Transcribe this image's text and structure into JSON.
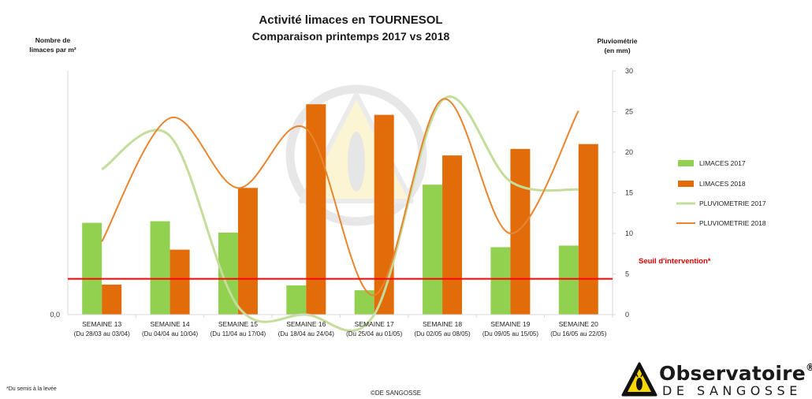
{
  "title": "Activité limaces en TOURNESOL",
  "subtitle": "Comparaison printemps 2017 vs 2018",
  "y_left_label_line1": "Nombre de",
  "y_left_label_line2": "limaces par m²",
  "y_right_label_line1": "Pluviométrie",
  "y_right_label_line2": "(en mm)",
  "threshold_label": "Seuil d'intervention*",
  "footnote_mark": "*",
  "footnote_text": "Du semis à la levée",
  "copyright": "©DE SANGOSSE",
  "brand": {
    "name": "Observatoire",
    "reg": "®",
    "sub": "DE SANGOSSE"
  },
  "colors": {
    "limaces_2017": "#92d050",
    "limaces_2018": "#e36c0a",
    "pluvio_2017": "#c4dd9b",
    "pluvio_2018": "#e9852e",
    "threshold": "#ff0000"
  },
  "chart_data": {
    "type": "bar",
    "categories": [
      [
        "SEMAINE 13",
        "(Du 28/03 au 03/04)"
      ],
      [
        "SEMAINE 14",
        "(Du 04/04 au 10/04)"
      ],
      [
        "SEMAINE 15",
        "(Du 11/04 au 17/04)"
      ],
      [
        "SEMAINE 16",
        "(Du 18/04 au 24/04)"
      ],
      [
        "SEMAINE 17",
        "(Du 25/04 au 01/05)"
      ],
      [
        "SEMAINE 18",
        "(Du 02/05 au 08/05)"
      ],
      [
        "SEMAINE 19",
        "(Du 09/05 au 15/05)"
      ],
      [
        "SEMAINE 20",
        "(Du 16/05 au 22/05)"
      ]
    ],
    "y_left": {
      "ticks": [
        "0,0"
      ]
    },
    "y_right": {
      "ticks": [
        0,
        5,
        10,
        15,
        20,
        25,
        30
      ],
      "ylim": [
        0,
        30
      ]
    },
    "series": [
      {
        "name": "LIMACES 2017",
        "type": "bar",
        "axis": "left",
        "values": [
          11.3,
          11.5,
          10.1,
          3.6,
          3.0,
          16.0,
          8.3,
          8.5
        ]
      },
      {
        "name": "LIMACES 2018",
        "type": "bar",
        "axis": "left",
        "values": [
          3.7,
          8.0,
          15.6,
          25.9,
          24.6,
          19.6,
          20.4,
          21.0
        ]
      },
      {
        "name": "PLUVIOMETRIE 2017",
        "type": "line",
        "axis": "right",
        "values": [
          17.9,
          22.0,
          1.0,
          0.0,
          0.0,
          26.4,
          16.4,
          15.4
        ]
      },
      {
        "name": "PLUVIOMETRIE 2018",
        "type": "line",
        "axis": "right",
        "values": [
          9.0,
          24.2,
          15.6,
          22.9,
          2.4,
          26.5,
          10.0,
          25.1
        ]
      }
    ],
    "threshold": {
      "value": 4.4,
      "label": "Seuil d'intervention*"
    }
  }
}
